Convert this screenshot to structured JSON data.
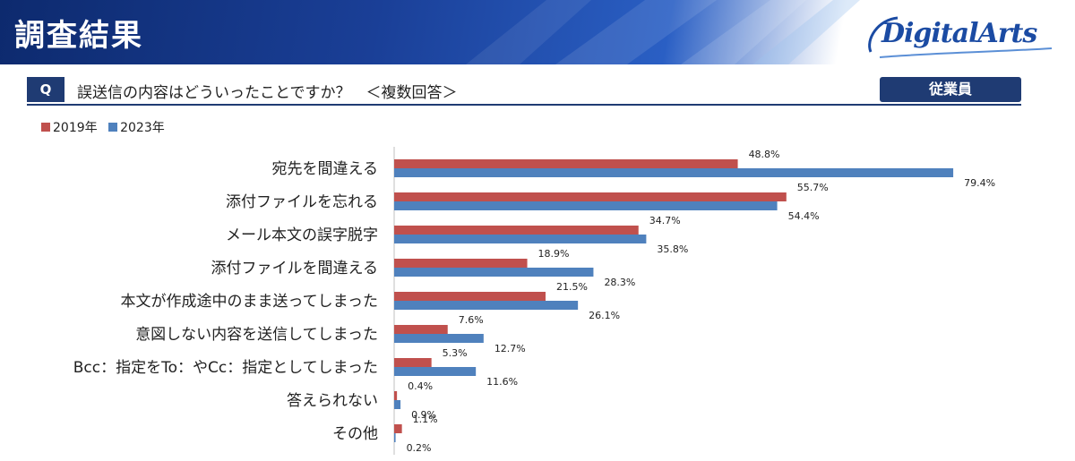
{
  "header": {
    "title": "調査結果",
    "brand": "DigitalArts"
  },
  "question": {
    "badge": "Q",
    "text": "誤送信の内容はどういったことですか？　＜複数回答＞",
    "segment": "従業員"
  },
  "colors": {
    "series_2019": "#c0504d",
    "series_2023": "#4f81bd",
    "banner": "#1a3f97",
    "label_box": "#1f3b73"
  },
  "chart_data": {
    "type": "bar",
    "orientation": "horizontal",
    "categories": [
      "宛先を間違える",
      "添付ファイルを忘れる",
      "メール本文の誤字脱字",
      "添付ファイルを間違える",
      "本文が作成途中のまま送ってしまった",
      "意図しない内容を送信してしまった",
      "Bcc：指定をTo：やCc：指定としてしまった",
      "答えられない",
      "その他"
    ],
    "series": [
      {
        "name": "2019年",
        "values": [
          48.8,
          55.7,
          34.7,
          18.9,
          21.5,
          7.6,
          5.3,
          0.4,
          1.1
        ],
        "labels": [
          "48.8%",
          "55.7%",
          "34.7%",
          "18.9%",
          "21.5%",
          "7.6%",
          "5.3%",
          "0.4%",
          "1.1%"
        ]
      },
      {
        "name": "2023年",
        "values": [
          79.4,
          54.4,
          35.8,
          28.3,
          26.1,
          12.7,
          11.6,
          0.9,
          0.2
        ],
        "labels": [
          "79.4%",
          "54.4%",
          "35.8%",
          "28.3%",
          "26.1%",
          "12.7%",
          "11.6%",
          "0.9%",
          "0.2%"
        ]
      }
    ],
    "xlim": [
      0,
      100
    ],
    "legend_position": "top-left",
    "grid": false
  }
}
